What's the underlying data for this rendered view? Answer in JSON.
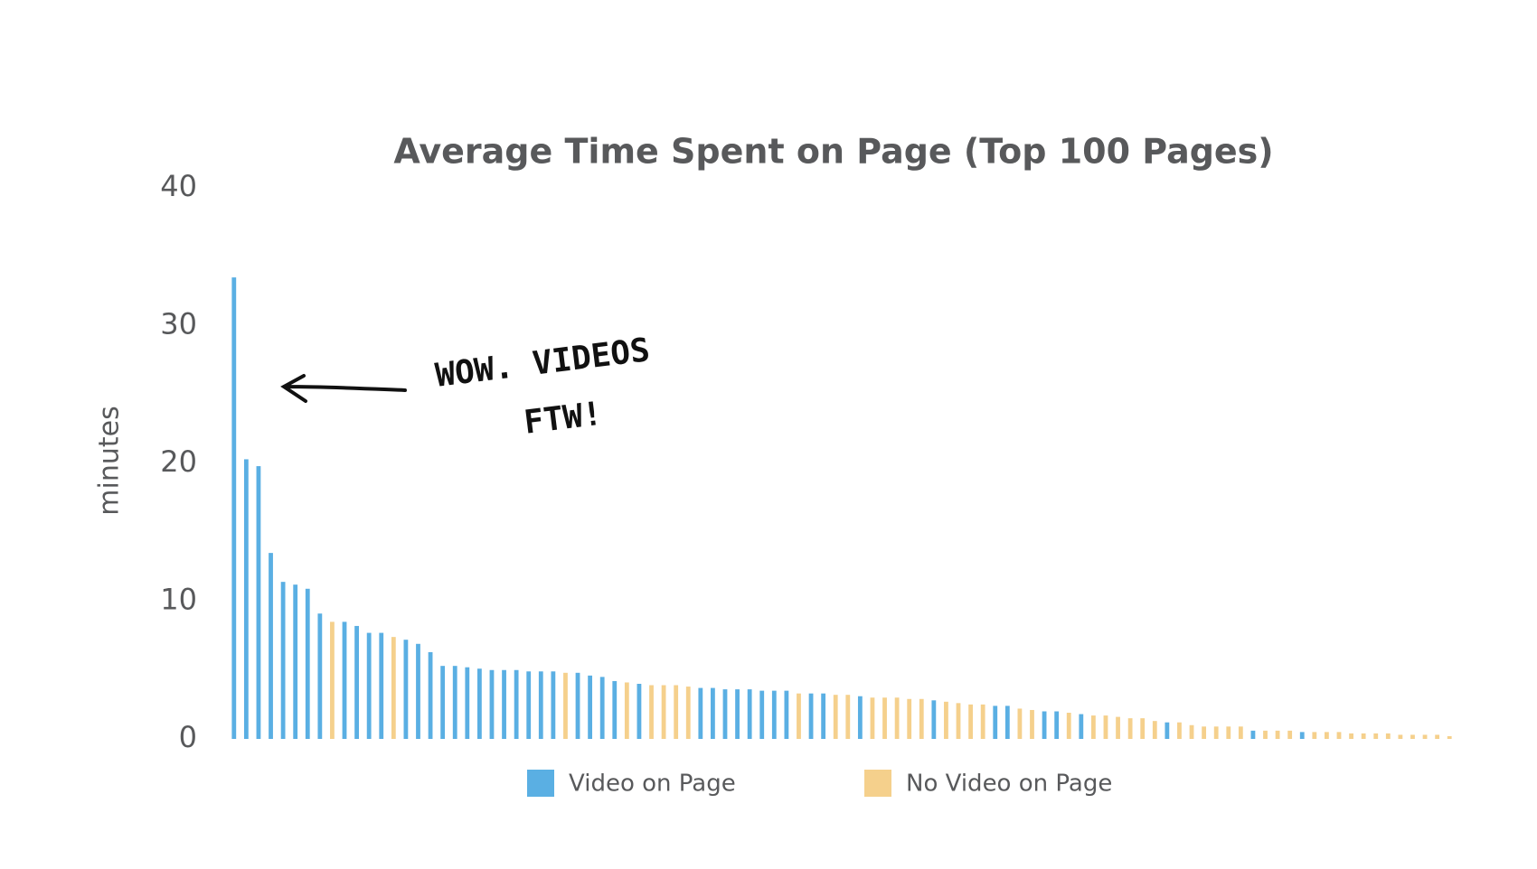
{
  "chart_data": {
    "type": "bar",
    "title": "Average Time Spent on Page (Top 100 Pages)",
    "y_label": "minutes",
    "annotations": [
      "WOW. VIDEOS",
      "FTW!"
    ],
    "categories": [
      null,
      null,
      null,
      null,
      null,
      null,
      null,
      null,
      null,
      null,
      null,
      null,
      null,
      null,
      null,
      null,
      null,
      null,
      null,
      null,
      null,
      null,
      null,
      null,
      null,
      null,
      null,
      null,
      null,
      null,
      null,
      null,
      null,
      null,
      null,
      null,
      null,
      null,
      null,
      null,
      null,
      null,
      null,
      null,
      null,
      null,
      null,
      null,
      null,
      null,
      null,
      null,
      null,
      null,
      null,
      null,
      null,
      null,
      null,
      null,
      null,
      null,
      null,
      null,
      null,
      null,
      null,
      null,
      null,
      null,
      null,
      null,
      null,
      null,
      null,
      null,
      null,
      null,
      null,
      null,
      null,
      null,
      null,
      null,
      null,
      null,
      null,
      null,
      null,
      null,
      null,
      null,
      null,
      null,
      null,
      null,
      null,
      null,
      null,
      null
    ],
    "series": [
      {
        "name": "Video on Page",
        "color": "#5aafe3",
        "values": [
          33.5,
          20.3,
          19.8,
          13.5,
          11.4,
          11.2,
          10.9,
          9.1,
          null,
          8.5,
          8.2,
          7.7,
          7.7,
          null,
          7.2,
          6.9,
          6.3,
          5.3,
          5.3,
          5.2,
          5.1,
          5.0,
          5.0,
          5.0,
          4.9,
          4.9,
          4.9,
          null,
          4.8,
          4.6,
          4.5,
          4.2,
          null,
          4.0,
          null,
          null,
          null,
          null,
          3.7,
          3.7,
          3.6,
          3.6,
          3.6,
          3.5,
          3.5,
          3.5,
          null,
          3.3,
          3.3,
          null,
          null,
          3.1,
          null,
          null,
          null,
          null,
          null,
          2.8,
          null,
          null,
          null,
          null,
          2.4,
          2.4,
          null,
          null,
          2.0,
          2.0,
          null,
          1.8,
          null,
          null,
          null,
          null,
          null,
          null,
          1.2,
          null,
          null,
          null,
          null,
          null,
          null,
          0.6,
          null,
          null,
          null,
          0.5,
          null,
          null,
          null,
          null,
          null,
          null,
          null,
          null,
          null,
          null,
          null,
          null
        ]
      },
      {
        "name": "No Video on Page",
        "color": "#f5d08c",
        "values": [
          null,
          null,
          null,
          null,
          null,
          null,
          null,
          null,
          8.5,
          null,
          null,
          null,
          null,
          7.4,
          null,
          null,
          null,
          null,
          null,
          null,
          null,
          null,
          null,
          null,
          null,
          null,
          null,
          4.8,
          null,
          null,
          null,
          null,
          4.1,
          null,
          3.9,
          3.9,
          3.9,
          3.8,
          null,
          null,
          null,
          null,
          null,
          null,
          null,
          null,
          3.3,
          null,
          null,
          3.2,
          3.2,
          null,
          3.0,
          3.0,
          3.0,
          2.9,
          2.9,
          null,
          2.7,
          2.6,
          2.5,
          2.5,
          null,
          null,
          2.2,
          2.1,
          null,
          null,
          1.9,
          null,
          1.7,
          1.7,
          1.6,
          1.5,
          1.5,
          1.3,
          null,
          1.2,
          1.0,
          0.9,
          0.9,
          0.9,
          0.9,
          null,
          0.6,
          0.6,
          0.6,
          null,
          0.5,
          0.5,
          0.5,
          0.4,
          0.4,
          0.4,
          0.4,
          0.3,
          0.3,
          0.3,
          0.3,
          0.2
        ]
      }
    ],
    "ylim": [
      0,
      40
    ],
    "yticks": [
      0,
      10,
      20,
      30,
      40
    ],
    "grid": false
  }
}
